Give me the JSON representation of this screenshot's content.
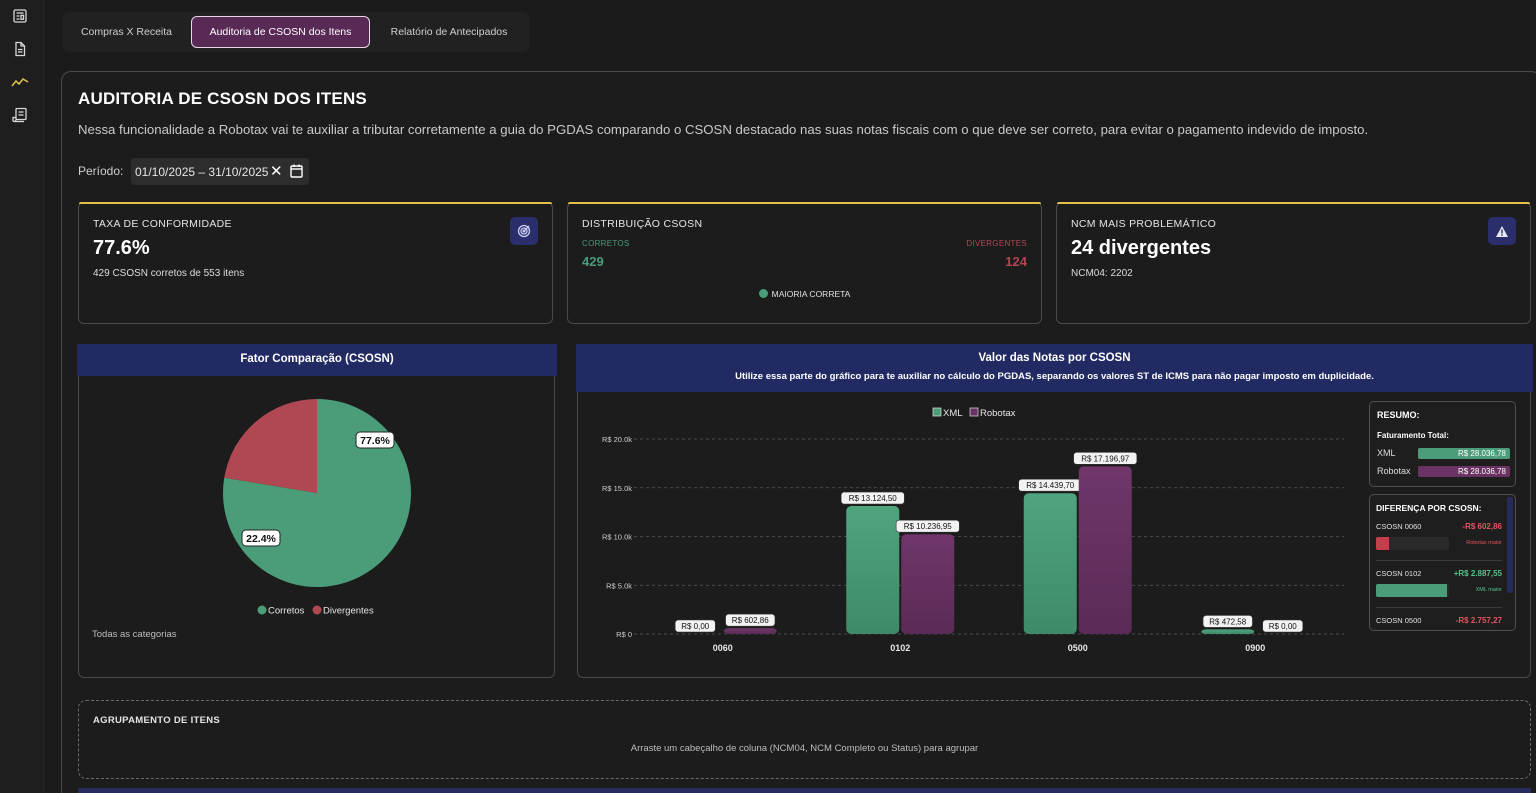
{
  "tabs": [
    {
      "label": "Compras X Receita"
    },
    {
      "label": "Auditoria de CSOSN dos Itens"
    },
    {
      "label": "Relatório de Antecipados"
    }
  ],
  "page": {
    "title": "AUDITORIA DE CSOSN DOS ITENS",
    "description": "Nessa funcionalidade a Robotax vai te auxiliar a tributar corretamente a guia do PGDAS comparando o CSOSN destacado nas suas notas fiscais com o que deve ser correto, para evitar o pagamento indevido de imposto.",
    "periodo_label": "Período:",
    "periodo_value": "01/10/2025 – 31/10/2025"
  },
  "cards": {
    "conformidade": {
      "title": "TAXA DE CONFORMIDADE",
      "value": "77.6%",
      "sub": "429 CSOSN corretos de 553 itens"
    },
    "distribuicao": {
      "title": "DISTRIBUIÇÃO CSOSN",
      "corretos_label": "CORRETOS",
      "corretos_value": "429",
      "divergentes_label": "DIVERGENTES",
      "divergentes_value": "124",
      "status": "MAIORIA CORRETA"
    },
    "ncm": {
      "title": "NCM MAIS PROBLEMÁTICO",
      "value": "24 divergentes",
      "sub": "NCM04: 2202"
    }
  },
  "pie_panel": {
    "title": "Fator Comparação (CSOSN)",
    "footer": "Todas as categorias"
  },
  "bar_panel": {
    "title": "Valor das Notas por CSOSN",
    "subtitle": "Utilize essa parte do gráfico para te auxiliar no cálculo do PGDAS, separando os valores ST de ICMS para não pagar imposto em duplicidade."
  },
  "resumo": {
    "title": "RESUMO:",
    "fat_label": "Faturamento Total:",
    "xml_label": "XML",
    "xml_value": "R$ 28.036,78",
    "robotax_label": "Robotax",
    "robotax_value": "R$ 28.036,78"
  },
  "diferenca": {
    "title": "DIFERENÇA POR CSOSN:",
    "items": [
      {
        "label": "CSOSN 0060",
        "value": "-R$ 602,86",
        "note": "Robotax maior",
        "fill": 0.18
      },
      {
        "label": "CSOSN 0102",
        "value": "+R$ 2.887,55",
        "note": "XML maior",
        "fill": 0.97
      },
      {
        "label": "CSOSN 0500",
        "value": "-R$ 2.757,27"
      }
    ]
  },
  "agrupamento": {
    "title": "AGRUPAMENTO DE ITENS",
    "hint": "Arraste um cabeçalho de coluna (NCM04, NCM Completo ou Status) para agrupar"
  },
  "colors": {
    "green": "#4a9d78",
    "red": "#b04853",
    "purple": "#6a3364",
    "navy": "#222a63",
    "gold": "#e3c04c"
  },
  "chart_data": [
    {
      "type": "pie",
      "title": "Fator Comparação (CSOSN)",
      "categories": [
        "Corretos",
        "Divergentes"
      ],
      "values": [
        77.6,
        22.4
      ],
      "labels": [
        "77.6%",
        "22.4%"
      ],
      "legend": "bottom"
    },
    {
      "type": "bar",
      "title": "Valor das Notas por CSOSN",
      "categories": [
        "0060",
        "0102",
        "0500",
        "0900"
      ],
      "series": [
        {
          "name": "XML",
          "values": [
            0.0,
            13124.5,
            14439.7,
            472.58
          ],
          "labels": [
            "R$ 0,00",
            "R$ 13.124,50",
            "R$ 14.439,70",
            "R$ 472,58"
          ]
        },
        {
          "name": "Robotax",
          "values": [
            602.86,
            10236.95,
            17196.97,
            0.0
          ],
          "labels": [
            "R$ 602,86",
            "R$ 10.236,95",
            "R$ 17.196,97",
            "R$ 0,00"
          ]
        }
      ],
      "ylim": [
        0,
        20000
      ],
      "yticks": [
        0,
        5000,
        10000,
        15000,
        20000
      ],
      "ytick_labels": [
        "R$ 0",
        "R$ 5.0k",
        "R$ 10.0k",
        "R$ 15.0k",
        "R$ 20.0k"
      ],
      "legend": "top",
      "grid": true
    }
  ]
}
